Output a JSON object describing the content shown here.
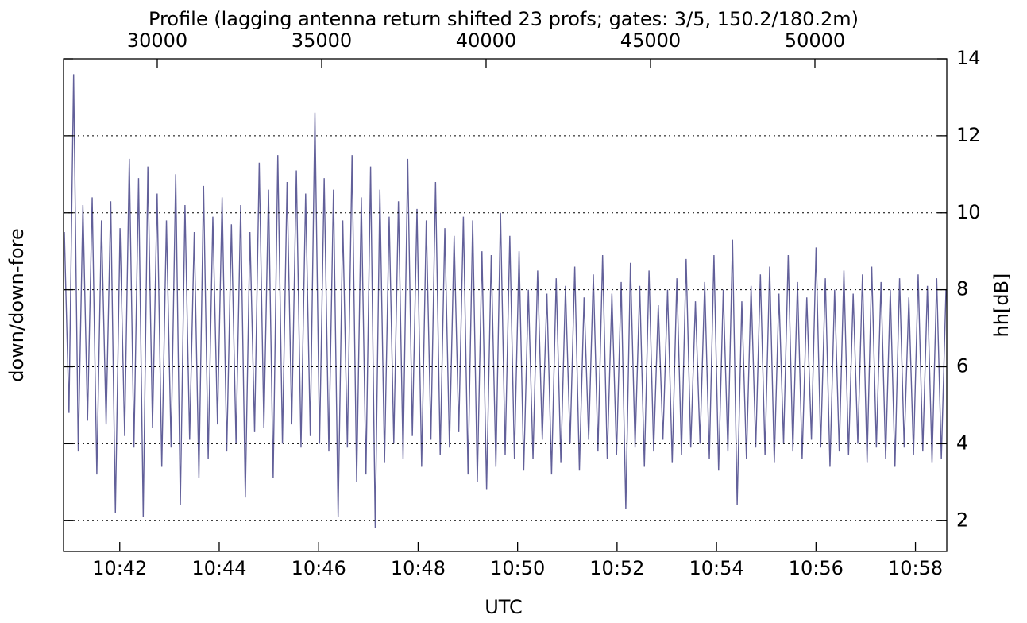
{
  "chart_data": {
    "type": "line",
    "title": "Profile (lagging antenna return shifted 23 profs; gates: 3/5, 150.2/180.2m)",
    "xlabel": "UTC",
    "ylabel": "down/down-fore",
    "y2label": "hh[dB]",
    "xlim": [
      640.87,
      658.63
    ],
    "xticks": [
      {
        "value": 642,
        "label": "10:42"
      },
      {
        "value": 644,
        "label": "10:44"
      },
      {
        "value": 646,
        "label": "10:46"
      },
      {
        "value": 648,
        "label": "10:48"
      },
      {
        "value": 650,
        "label": "10:50"
      },
      {
        "value": 652,
        "label": "10:52"
      },
      {
        "value": 654,
        "label": "10:54"
      },
      {
        "value": 656,
        "label": "10:56"
      },
      {
        "value": 658,
        "label": "10:58"
      }
    ],
    "x2lim": [
      27150,
      54010
    ],
    "x2ticks": [
      30000,
      35000,
      40000,
      45000,
      50000
    ],
    "ylim": [
      1.2,
      14
    ],
    "yticks": [
      2,
      4,
      6,
      8,
      10,
      12,
      14
    ],
    "grid": true,
    "series": [
      {
        "color": "#62609a",
        "values": [
          9.5,
          4.8,
          13.6,
          3.8,
          10.2,
          4.6,
          10.4,
          3.2,
          9.8,
          4.5,
          10.3,
          2.2,
          9.6,
          4.2,
          11.4,
          3.9,
          10.9,
          2.1,
          11.2,
          4.4,
          10.5,
          3.4,
          9.8,
          3.9,
          11.0,
          2.4,
          10.2,
          4.1,
          9.5,
          3.1,
          10.7,
          3.6,
          9.9,
          4.5,
          10.4,
          3.8,
          9.7,
          4.0,
          10.2,
          2.6,
          9.5,
          4.3,
          11.3,
          4.4,
          10.6,
          3.1,
          11.5,
          4.0,
          10.8,
          4.5,
          11.1,
          3.9,
          10.5,
          4.2,
          12.6,
          4.0,
          10.9,
          3.8,
          10.6,
          2.1,
          9.8,
          3.9,
          11.5,
          3.0,
          10.4,
          3.2,
          11.2,
          1.8,
          10.6,
          3.5,
          9.9,
          4.0,
          10.3,
          3.6,
          11.4,
          4.2,
          10.1,
          3.4,
          9.8,
          4.1,
          10.8,
          3.7,
          9.6,
          3.9,
          9.4,
          4.3,
          9.9,
          3.2,
          9.8,
          3.0,
          9.0,
          2.8,
          8.9,
          3.4,
          10.0,
          3.7,
          9.4,
          3.6,
          9.0,
          3.3,
          8.0,
          3.6,
          8.5,
          4.1,
          7.9,
          3.2,
          8.3,
          3.5,
          8.1,
          4.0,
          8.6,
          3.3,
          7.8,
          4.1,
          8.4,
          3.8,
          8.9,
          3.6,
          7.9,
          3.7,
          8.2,
          2.3,
          8.7,
          3.9,
          8.1,
          3.4,
          8.5,
          3.8,
          7.6,
          4.1,
          8.0,
          3.5,
          8.3,
          3.7,
          8.8,
          3.9,
          7.7,
          4.0,
          8.2,
          3.6,
          8.9,
          3.3,
          8.0,
          3.8,
          9.3,
          2.4,
          7.7,
          3.6,
          8.1,
          3.9,
          8.4,
          3.7,
          8.6,
          3.5,
          7.9,
          4.0,
          8.9,
          3.8,
          8.2,
          3.6,
          7.8,
          4.1,
          9.1,
          3.9,
          8.3,
          3.4,
          8.0,
          3.8,
          8.5,
          3.7,
          7.9,
          4.0,
          8.4,
          3.5,
          8.6,
          3.9,
          8.2,
          3.6,
          8.0,
          3.4,
          8.3,
          3.9,
          7.8,
          3.7,
          8.4,
          3.8,
          8.1,
          3.5,
          8.3,
          3.6,
          8.0
        ]
      }
    ]
  }
}
